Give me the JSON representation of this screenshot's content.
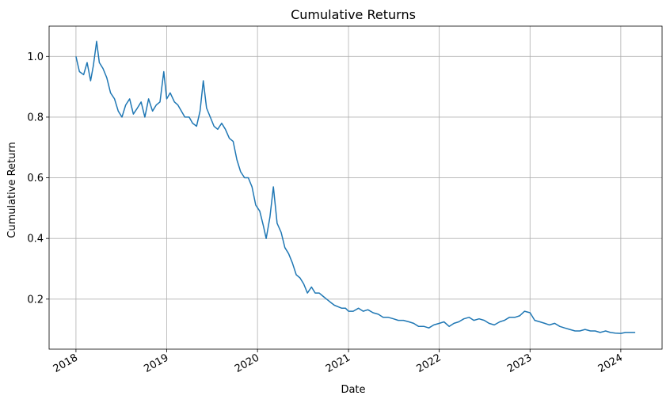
{
  "chart_data": {
    "type": "line",
    "title": "Cumulative Returns",
    "xlabel": "Date",
    "ylabel": "Cumulative Return",
    "x_type": "date",
    "xlim": [
      "2017-09-15",
      "2024-06-15"
    ],
    "ylim": [
      0.035,
      1.1
    ],
    "grid": true,
    "x_ticks": [
      {
        "value": "2018-01-01",
        "label": "2018"
      },
      {
        "value": "2019-01-01",
        "label": "2019"
      },
      {
        "value": "2020-01-01",
        "label": "2020"
      },
      {
        "value": "2021-01-01",
        "label": "2021"
      },
      {
        "value": "2022-01-01",
        "label": "2022"
      },
      {
        "value": "2023-01-01",
        "label": "2023"
      },
      {
        "value": "2024-01-01",
        "label": "2024"
      }
    ],
    "y_ticks": [
      {
        "value": 0.2,
        "label": "0.2"
      },
      {
        "value": 0.4,
        "label": "0.4"
      },
      {
        "value": 0.6,
        "label": "0.6"
      },
      {
        "value": 0.8,
        "label": "0.8"
      },
      {
        "value": 1.0,
        "label": "1.0"
      }
    ],
    "series": [
      {
        "color": "#1f77b4",
        "x": [
          "2018-01-01",
          "2018-01-15",
          "2018-02-01",
          "2018-02-15",
          "2018-03-01",
          "2018-03-12",
          "2018-03-25",
          "2018-04-05",
          "2018-04-20",
          "2018-05-05",
          "2018-05-20",
          "2018-06-05",
          "2018-06-20",
          "2018-07-05",
          "2018-07-20",
          "2018-08-05",
          "2018-08-20",
          "2018-09-05",
          "2018-09-20",
          "2018-10-05",
          "2018-10-20",
          "2018-11-05",
          "2018-11-20",
          "2018-12-05",
          "2018-12-20",
          "2019-01-01",
          "2019-01-15",
          "2019-02-01",
          "2019-02-15",
          "2019-03-01",
          "2019-03-15",
          "2019-04-01",
          "2019-04-15",
          "2019-05-01",
          "2019-05-15",
          "2019-05-28",
          "2019-06-10",
          "2019-06-25",
          "2019-07-10",
          "2019-07-25",
          "2019-08-10",
          "2019-08-25",
          "2019-09-10",
          "2019-09-25",
          "2019-10-10",
          "2019-10-25",
          "2019-11-10",
          "2019-11-25",
          "2019-12-10",
          "2019-12-25",
          "2020-01-10",
          "2020-01-25",
          "2020-02-05",
          "2020-02-20",
          "2020-03-05",
          "2020-03-20",
          "2020-04-05",
          "2020-04-20",
          "2020-05-05",
          "2020-05-20",
          "2020-06-05",
          "2020-06-20",
          "2020-07-05",
          "2020-07-20",
          "2020-08-05",
          "2020-08-20",
          "2020-09-05",
          "2020-09-20",
          "2020-10-05",
          "2020-10-20",
          "2020-11-05",
          "2020-11-20",
          "2020-12-05",
          "2020-12-20",
          "2021-01-01",
          "2021-01-20",
          "2021-02-10",
          "2021-03-01",
          "2021-03-20",
          "2021-04-10",
          "2021-05-01",
          "2021-05-20",
          "2021-06-10",
          "2021-07-01",
          "2021-07-20",
          "2021-08-10",
          "2021-09-01",
          "2021-09-20",
          "2021-10-10",
          "2021-11-01",
          "2021-11-20",
          "2021-12-10",
          "2022-01-01",
          "2022-01-20",
          "2022-02-10",
          "2022-03-01",
          "2022-03-20",
          "2022-04-10",
          "2022-05-01",
          "2022-05-20",
          "2022-06-10",
          "2022-07-01",
          "2022-07-20",
          "2022-08-10",
          "2022-09-01",
          "2022-09-20",
          "2022-10-10",
          "2022-11-01",
          "2022-11-20",
          "2022-12-10",
          "2023-01-01",
          "2023-01-20",
          "2023-02-10",
          "2023-03-01",
          "2023-03-20",
          "2023-04-10",
          "2023-05-01",
          "2023-05-20",
          "2023-06-10",
          "2023-07-01",
          "2023-07-20",
          "2023-08-10",
          "2023-09-01",
          "2023-09-20",
          "2023-10-10",
          "2023-11-01",
          "2023-11-20",
          "2023-12-10",
          "2024-01-01",
          "2024-01-20",
          "2024-02-10",
          "2024-02-28"
        ],
        "values": [
          1.0,
          0.95,
          0.94,
          0.98,
          0.92,
          0.97,
          1.05,
          0.98,
          0.96,
          0.93,
          0.88,
          0.86,
          0.82,
          0.8,
          0.84,
          0.86,
          0.81,
          0.83,
          0.85,
          0.8,
          0.86,
          0.82,
          0.84,
          0.85,
          0.95,
          0.86,
          0.88,
          0.85,
          0.84,
          0.82,
          0.8,
          0.8,
          0.78,
          0.77,
          0.82,
          0.92,
          0.83,
          0.8,
          0.77,
          0.76,
          0.78,
          0.76,
          0.73,
          0.72,
          0.66,
          0.62,
          0.6,
          0.6,
          0.57,
          0.51,
          0.49,
          0.44,
          0.4,
          0.47,
          0.57,
          0.45,
          0.42,
          0.37,
          0.35,
          0.32,
          0.28,
          0.27,
          0.25,
          0.22,
          0.24,
          0.22,
          0.22,
          0.21,
          0.2,
          0.19,
          0.18,
          0.175,
          0.17,
          0.17,
          0.16,
          0.16,
          0.17,
          0.16,
          0.165,
          0.155,
          0.15,
          0.14,
          0.14,
          0.135,
          0.13,
          0.13,
          0.125,
          0.12,
          0.11,
          0.11,
          0.105,
          0.115,
          0.12,
          0.125,
          0.11,
          0.12,
          0.125,
          0.135,
          0.14,
          0.13,
          0.135,
          0.13,
          0.12,
          0.115,
          0.125,
          0.13,
          0.14,
          0.14,
          0.145,
          0.16,
          0.155,
          0.13,
          0.125,
          0.12,
          0.115,
          0.12,
          0.11,
          0.105,
          0.1,
          0.095,
          0.095,
          0.1,
          0.095,
          0.095,
          0.09,
          0.095,
          0.09,
          0.088,
          0.087,
          0.09,
          0.09,
          0.09
        ]
      }
    ]
  }
}
